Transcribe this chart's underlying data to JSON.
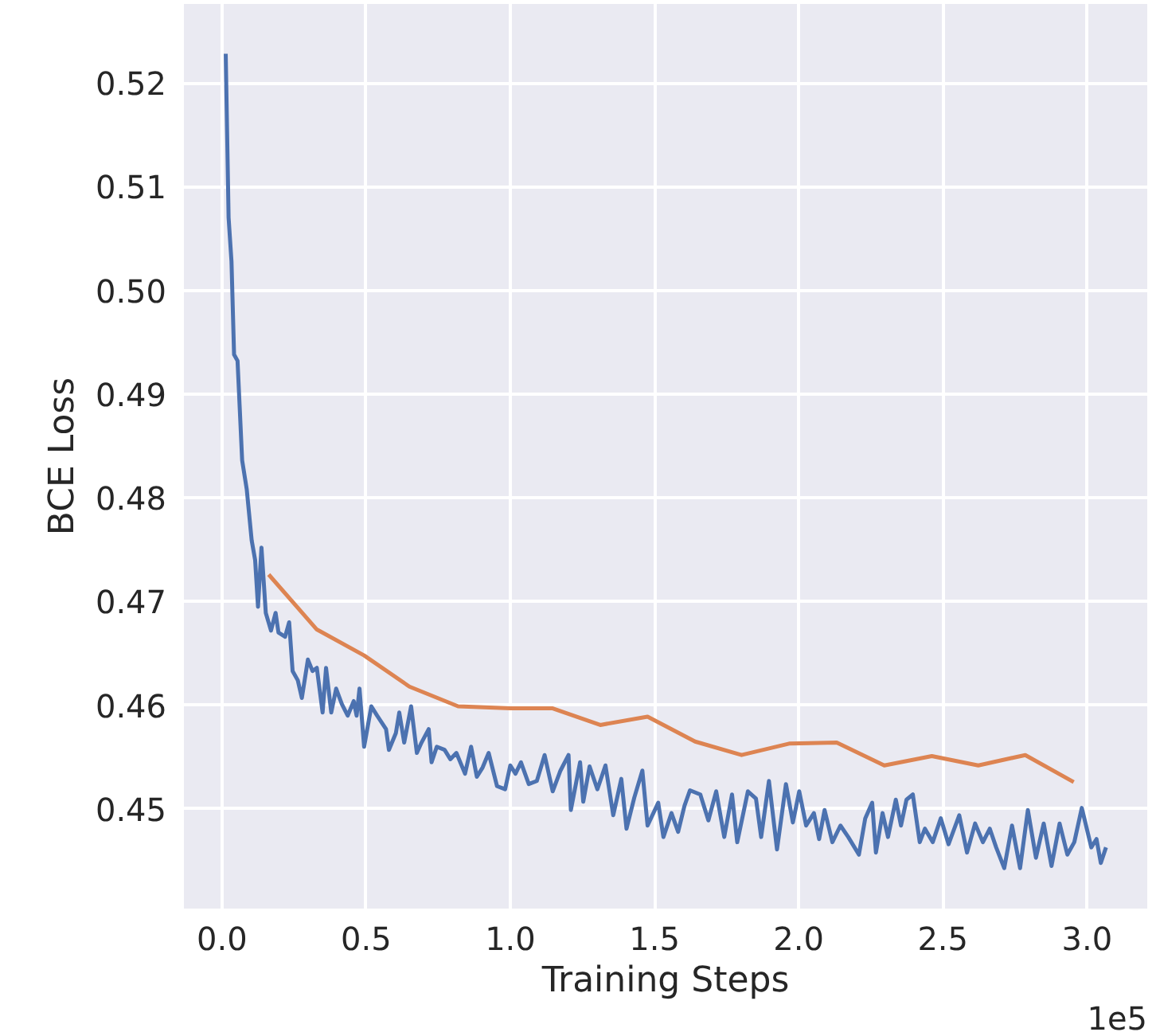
{
  "chart_data": {
    "type": "line",
    "xlabel": "Training Steps",
    "ylabel": "BCE Loss",
    "annotations": [
      "1e5"
    ],
    "xlim": [
      -0.132,
      3.209
    ],
    "ylim": [
      0.4404,
      0.5276
    ],
    "xticks": [
      {
        "value": 0,
        "label": "0.0"
      },
      0.5,
      {
        "value": 1,
        "label": "1.0"
      },
      1.5,
      {
        "value": 2,
        "label": "2.0"
      },
      2.5,
      {
        "value": 3,
        "label": "3.0"
      }
    ],
    "yticks": [
      0.45,
      0.46,
      0.47,
      0.48,
      0.49,
      {
        "value": 0.5,
        "label": "0.50"
      },
      0.51,
      0.52
    ],
    "grid": true,
    "marker": "none",
    "line_style": "solid",
    "series": [
      {
        "color": "#4c72b0",
        "x": [
          0.013,
          0.023,
          0.033,
          0.042,
          0.054,
          0.07,
          0.086,
          0.103,
          0.115,
          0.125,
          0.137,
          0.152,
          0.17,
          0.186,
          0.196,
          0.219,
          0.233,
          0.245,
          0.263,
          0.277,
          0.298,
          0.314,
          0.329,
          0.349,
          0.361,
          0.379,
          0.396,
          0.416,
          0.436,
          0.457,
          0.467,
          0.477,
          0.493,
          0.518,
          0.538,
          0.569,
          0.579,
          0.603,
          0.615,
          0.632,
          0.656,
          0.676,
          0.692,
          0.717,
          0.727,
          0.745,
          0.772,
          0.792,
          0.813,
          0.843,
          0.864,
          0.884,
          0.904,
          0.925,
          0.954,
          0.982,
          1.0,
          1.018,
          1.037,
          1.064,
          1.092,
          1.119,
          1.147,
          1.174,
          1.202,
          1.21,
          1.242,
          1.253,
          1.275,
          1.302,
          1.33,
          1.357,
          1.385,
          1.403,
          1.43,
          1.458,
          1.476,
          1.513,
          1.531,
          1.559,
          1.582,
          1.604,
          1.623,
          1.659,
          1.687,
          1.714,
          1.742,
          1.769,
          1.787,
          1.824,
          1.852,
          1.87,
          1.897,
          1.925,
          1.956,
          1.98,
          2.002,
          2.026,
          2.053,
          2.071,
          2.09,
          2.117,
          2.145,
          2.172,
          2.209,
          2.231,
          2.255,
          2.268,
          2.291,
          2.31,
          2.337,
          2.355,
          2.374,
          2.396,
          2.42,
          2.438,
          2.465,
          2.493,
          2.52,
          2.557,
          2.584,
          2.612,
          2.639,
          2.663,
          2.685,
          2.713,
          2.74,
          2.768,
          2.795,
          2.823,
          2.85,
          2.877,
          2.905,
          2.932,
          2.956,
          2.982,
          3.015,
          3.033,
          3.048,
          3.066
        ],
        "values": [
          0.5228,
          0.507,
          0.5028,
          0.4938,
          0.4932,
          0.4836,
          0.4808,
          0.4759,
          0.474,
          0.4695,
          0.4752,
          0.4689,
          0.4672,
          0.4689,
          0.467,
          0.4666,
          0.468,
          0.4633,
          0.4624,
          0.4607,
          0.4644,
          0.4633,
          0.4636,
          0.4593,
          0.4636,
          0.4593,
          0.4616,
          0.4601,
          0.459,
          0.4604,
          0.459,
          0.4616,
          0.456,
          0.4599,
          0.459,
          0.4577,
          0.4557,
          0.4573,
          0.4593,
          0.4564,
          0.4599,
          0.4554,
          0.4564,
          0.4577,
          0.4545,
          0.456,
          0.4557,
          0.4548,
          0.4554,
          0.4534,
          0.456,
          0.4531,
          0.454,
          0.4554,
          0.4522,
          0.4519,
          0.4542,
          0.4534,
          0.4545,
          0.4524,
          0.4527,
          0.4552,
          0.4517,
          0.4537,
          0.4552,
          0.4499,
          0.4545,
          0.4507,
          0.4541,
          0.4519,
          0.4542,
          0.4494,
          0.4529,
          0.4481,
          0.4511,
          0.4537,
          0.4484,
          0.4506,
          0.4473,
          0.4496,
          0.4478,
          0.4503,
          0.4518,
          0.4514,
          0.4489,
          0.4517,
          0.4473,
          0.4514,
          0.4468,
          0.4517,
          0.451,
          0.4473,
          0.4527,
          0.4461,
          0.4524,
          0.4487,
          0.4517,
          0.4484,
          0.4496,
          0.4471,
          0.4499,
          0.4468,
          0.4484,
          0.4473,
          0.4456,
          0.4491,
          0.4506,
          0.4458,
          0.4496,
          0.4473,
          0.4509,
          0.4484,
          0.4509,
          0.4514,
          0.4468,
          0.4481,
          0.4468,
          0.4491,
          0.4466,
          0.4494,
          0.4458,
          0.4486,
          0.4468,
          0.4481,
          0.4463,
          0.4443,
          0.4484,
          0.4443,
          0.4499,
          0.4453,
          0.4486,
          0.4445,
          0.4486,
          0.4456,
          0.4468,
          0.4501,
          0.4463,
          0.4471,
          0.4448,
          0.4463
        ]
      },
      {
        "color": "#dd8452",
        "x": [
          0.162,
          0.329,
          0.493,
          0.65,
          0.819,
          1.0,
          1.147,
          1.312,
          1.476,
          1.641,
          1.802,
          1.967,
          2.132,
          2.297,
          2.462,
          2.623,
          2.786,
          2.954
        ],
        "values": [
          0.4726,
          0.4673,
          0.4648,
          0.4618,
          0.4599,
          0.4597,
          0.4597,
          0.4581,
          0.4589,
          0.4565,
          0.4552,
          0.4563,
          0.4564,
          0.4542,
          0.4551,
          0.4542,
          0.4552,
          0.4526
        ]
      }
    ]
  }
}
